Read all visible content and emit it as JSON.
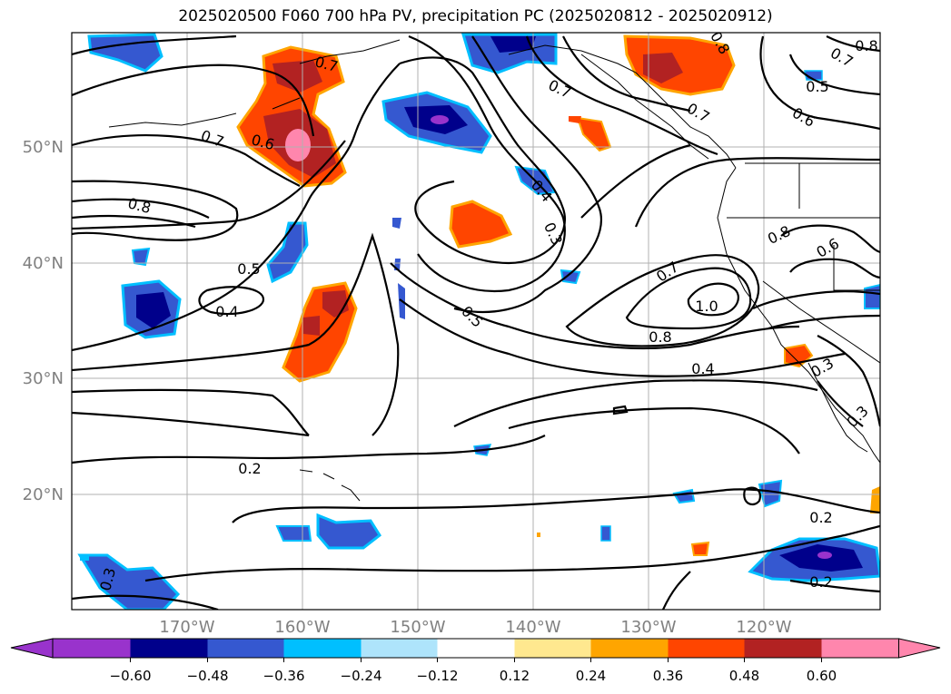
{
  "title": "2025020500 F060 700 hPa PV, precipitation PC (2025020812 - 2025020912)",
  "map": {
    "lon_labels": [
      "170°W",
      "160°W",
      "150°W",
      "140°W",
      "130°W",
      "120°W"
    ],
    "lat_labels": [
      "50°N",
      "40°N",
      "30°N",
      "20°N"
    ],
    "contour_labels": [
      "0.7",
      "0.6",
      "0.8",
      "0.5",
      "0.4",
      "0.7",
      "0.4",
      "0.3",
      "0.5",
      "0.7",
      "1.0",
      "0.8",
      "0.4",
      "0.3",
      "0.3",
      "0.2",
      "0.2",
      "0.2",
      "0.3",
      "0.8",
      "0.7",
      "0.5",
      "0.6",
      "0.8",
      "0.6",
      "0.7",
      "0.7",
      "0.8"
    ],
    "label_color": "#808080"
  },
  "colorbar": {
    "ticks": [
      "−0.60",
      "−0.48",
      "−0.36",
      "−0.24",
      "−0.12",
      "0.12",
      "0.24",
      "0.36",
      "0.48",
      "0.60"
    ],
    "colors": [
      "#9933cc",
      "#00008b",
      "#3558d0",
      "#00bfff",
      "#aee4fb",
      "#ffffff",
      "#ffe88f",
      "#ffa500",
      "#ff4500",
      "#b22222",
      "#ff86ad"
    ]
  }
}
